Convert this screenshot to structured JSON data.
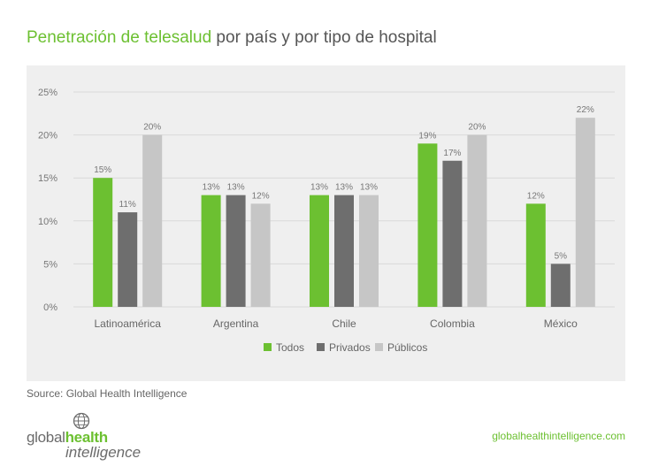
{
  "title": {
    "highlight": "Penetración de telesalud",
    "rest": " por país y por tipo de hospital"
  },
  "source": "Source: Global Health Intelligence",
  "logo": {
    "part1": "global",
    "part2": "health",
    "part3": "intelligence"
  },
  "website": "globalhealthintelligence.com",
  "colors": {
    "accent": "#6cc031",
    "privados": "#6e6e6e",
    "publicos": "#c6c6c6",
    "panel": "#efefef"
  },
  "chart_data": {
    "type": "bar",
    "categories": [
      "Latinoamérica",
      "Argentina",
      "Chile",
      "Colombia",
      "México"
    ],
    "series": [
      {
        "name": "Todos",
        "color": "#6cc031",
        "values": [
          15,
          13,
          13,
          19,
          12
        ],
        "labels": [
          "15%",
          "13%",
          "13%",
          "19%",
          "12%"
        ]
      },
      {
        "name": "Privados",
        "color": "#6e6e6e",
        "values": [
          11,
          13,
          13,
          17,
          5
        ],
        "labels": [
          "11%",
          "13%",
          "13%",
          "17%",
          "5%"
        ]
      },
      {
        "name": "Públicos",
        "color": "#c6c6c6",
        "values": [
          20,
          12,
          13,
          20,
          22
        ],
        "labels": [
          "20%",
          "12%",
          "13%",
          "20%",
          "22%"
        ]
      }
    ],
    "y_ticks": [
      0,
      5,
      10,
      15,
      20,
      25
    ],
    "y_tick_labels": [
      "0%",
      "5%",
      "10%",
      "15%",
      "20%",
      "25%"
    ],
    "ylim": [
      0,
      25
    ],
    "grid": true,
    "legend_position": "bottom-center"
  }
}
